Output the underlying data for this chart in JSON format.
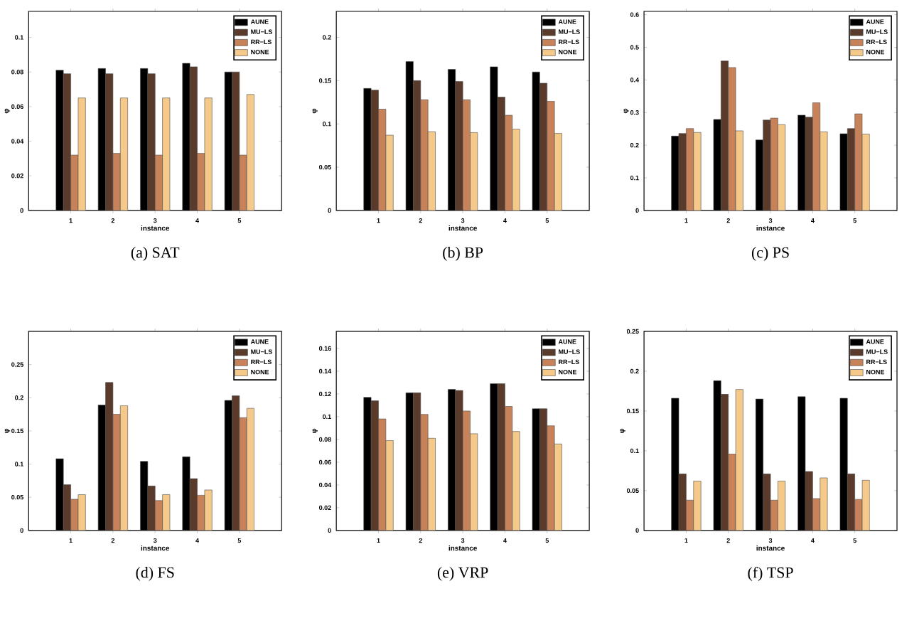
{
  "chart_data": [
    {
      "type": "bar",
      "title": "(a) SAT",
      "xlabel": "instance",
      "ylabel": "φ",
      "categories": [
        "1",
        "2",
        "3",
        "4",
        "5"
      ],
      "ylim": [
        0,
        0.115
      ],
      "yticks": [
        0,
        0.02,
        0.04,
        0.06,
        0.08,
        0.1
      ],
      "legend": "top right",
      "series": [
        {
          "name": "AUNE",
          "color": "#000000",
          "values": [
            0.081,
            0.082,
            0.082,
            0.085,
            0.08
          ]
        },
        {
          "name": "MU−LS",
          "color": "#5a3a2a",
          "values": [
            0.079,
            0.079,
            0.079,
            0.083,
            0.08
          ]
        },
        {
          "name": "RR−LS",
          "color": "#c8825a",
          "values": [
            0.032,
            0.033,
            0.032,
            0.033,
            0.032
          ]
        },
        {
          "name": "NONE",
          "color": "#f5c98a",
          "values": [
            0.065,
            0.065,
            0.065,
            0.065,
            0.067
          ]
        }
      ]
    },
    {
      "type": "bar",
      "title": "(b) BP",
      "xlabel": "instance",
      "ylabel": "φ",
      "categories": [
        "1",
        "2",
        "3",
        "4",
        "5"
      ],
      "ylim": [
        0,
        0.23
      ],
      "yticks": [
        0,
        0.05,
        0.1,
        0.15,
        0.2
      ],
      "legend": "top right",
      "series": [
        {
          "name": "AUNE",
          "color": "#000000",
          "values": [
            0.141,
            0.172,
            0.163,
            0.166,
            0.16
          ]
        },
        {
          "name": "MU−LS",
          "color": "#5a3a2a",
          "values": [
            0.139,
            0.15,
            0.149,
            0.131,
            0.147
          ]
        },
        {
          "name": "RR−LS",
          "color": "#c8825a",
          "values": [
            0.117,
            0.128,
            0.128,
            0.11,
            0.126
          ]
        },
        {
          "name": "NONE",
          "color": "#f5c98a",
          "values": [
            0.087,
            0.091,
            0.09,
            0.094,
            0.089
          ]
        }
      ]
    },
    {
      "type": "bar",
      "title": "(c) PS",
      "xlabel": "instance",
      "ylabel": "φ",
      "categories": [
        "1",
        "2",
        "3",
        "4",
        "5"
      ],
      "ylim": [
        0,
        0.61
      ],
      "yticks": [
        0,
        0.1,
        0.2,
        0.3,
        0.4,
        0.5,
        0.6
      ],
      "legend": "top right",
      "series": [
        {
          "name": "AUNE",
          "color": "#000000",
          "values": [
            0.228,
            0.279,
            0.216,
            0.292,
            0.235
          ]
        },
        {
          "name": "MU−LS",
          "color": "#5a3a2a",
          "values": [
            0.236,
            0.458,
            0.277,
            0.286,
            0.251
          ]
        },
        {
          "name": "RR−LS",
          "color": "#c8825a",
          "values": [
            0.251,
            0.438,
            0.283,
            0.33,
            0.296
          ]
        },
        {
          "name": "NONE",
          "color": "#f5c98a",
          "values": [
            0.239,
            0.244,
            0.263,
            0.241,
            0.234
          ]
        }
      ]
    },
    {
      "type": "bar",
      "title": "(d) FS",
      "xlabel": "instance",
      "ylabel": "φ",
      "categories": [
        "1",
        "2",
        "3",
        "4",
        "5"
      ],
      "ylim": [
        0,
        0.3
      ],
      "yticks": [
        0,
        0.05,
        0.1,
        0.15,
        0.2,
        0.25
      ],
      "legend": "top right",
      "series": [
        {
          "name": "AUNE",
          "color": "#000000",
          "values": [
            0.108,
            0.189,
            0.104,
            0.111,
            0.196
          ]
        },
        {
          "name": "MU−LS",
          "color": "#5a3a2a",
          "values": [
            0.069,
            0.223,
            0.067,
            0.078,
            0.203
          ]
        },
        {
          "name": "RR−LS",
          "color": "#c8825a",
          "values": [
            0.047,
            0.175,
            0.045,
            0.053,
            0.17
          ]
        },
        {
          "name": "NONE",
          "color": "#f5c98a",
          "values": [
            0.054,
            0.188,
            0.054,
            0.061,
            0.184
          ]
        }
      ]
    },
    {
      "type": "bar",
      "title": "(e) VRP",
      "xlabel": "instance",
      "ylabel": "φ",
      "categories": [
        "1",
        "2",
        "3",
        "4",
        "5"
      ],
      "ylim": [
        0,
        0.175
      ],
      "yticks": [
        0,
        0.02,
        0.04,
        0.06,
        0.08,
        0.1,
        0.12,
        0.14,
        0.16
      ],
      "legend": "top right",
      "series": [
        {
          "name": "AUNE",
          "color": "#000000",
          "values": [
            0.117,
            0.121,
            0.124,
            0.129,
            0.107
          ]
        },
        {
          "name": "MU−LS",
          "color": "#5a3a2a",
          "values": [
            0.114,
            0.121,
            0.123,
            0.129,
            0.107
          ]
        },
        {
          "name": "RR−LS",
          "color": "#c8825a",
          "values": [
            0.098,
            0.102,
            0.105,
            0.109,
            0.092
          ]
        },
        {
          "name": "NONE",
          "color": "#f5c98a",
          "values": [
            0.079,
            0.081,
            0.085,
            0.087,
            0.076
          ]
        }
      ]
    },
    {
      "type": "bar",
      "title": "(f) TSP",
      "xlabel": "instance",
      "ylabel": "φ",
      "categories": [
        "1",
        "2",
        "3",
        "4",
        "5"
      ],
      "ylim": [
        0,
        0.25
      ],
      "yticks": [
        0,
        0.05,
        0.1,
        0.15,
        0.2,
        0.25
      ],
      "legend": "top right",
      "series": [
        {
          "name": "AUNE",
          "color": "#000000",
          "values": [
            0.166,
            0.188,
            0.165,
            0.168,
            0.166
          ]
        },
        {
          "name": "MU−LS",
          "color": "#5a3a2a",
          "values": [
            0.071,
            0.171,
            0.071,
            0.074,
            0.071
          ]
        },
        {
          "name": "RR−LS",
          "color": "#c8825a",
          "values": [
            0.038,
            0.096,
            0.038,
            0.04,
            0.039
          ]
        },
        {
          "name": "NONE",
          "color": "#f5c98a",
          "values": [
            0.062,
            0.177,
            0.062,
            0.066,
            0.063
          ]
        }
      ]
    }
  ]
}
